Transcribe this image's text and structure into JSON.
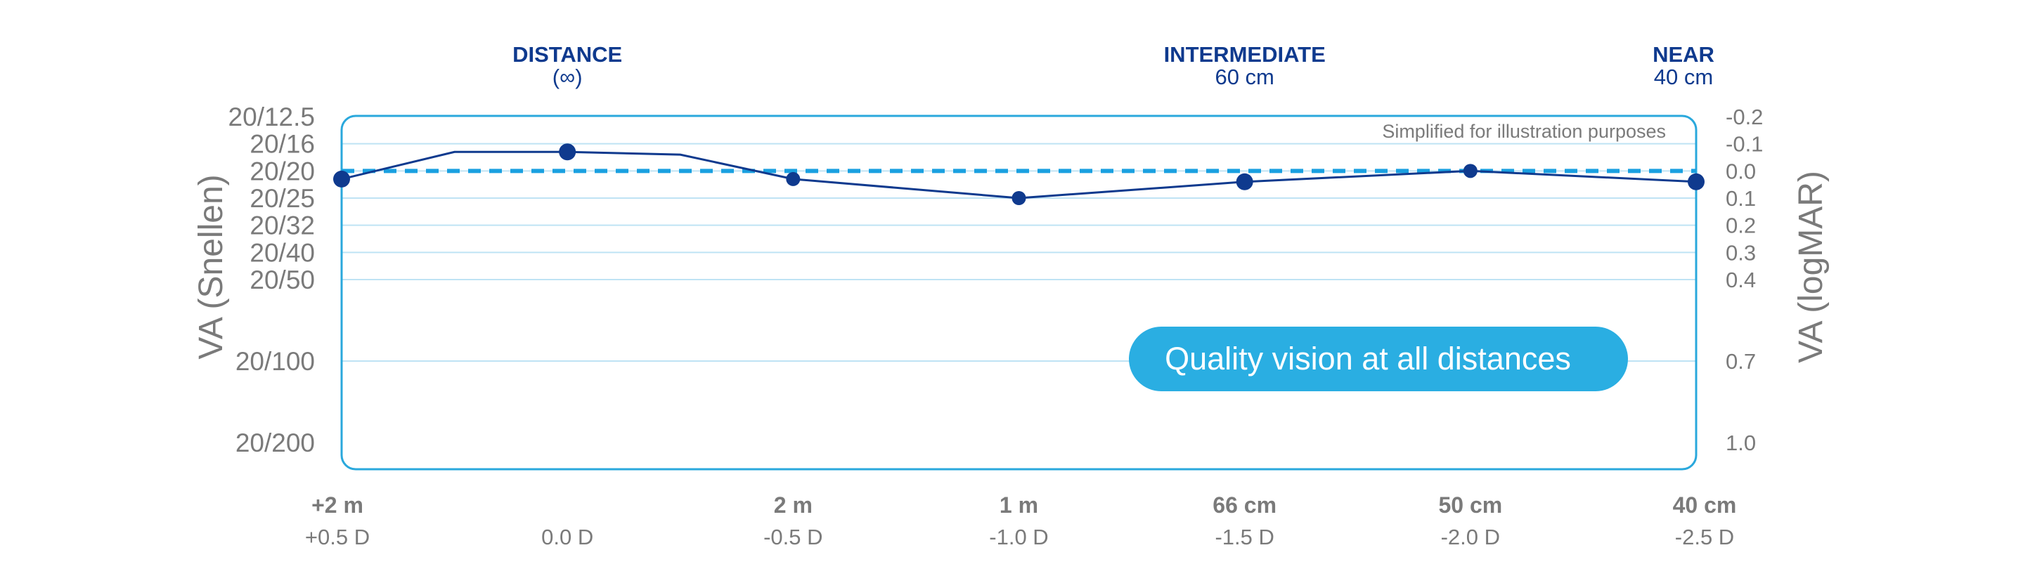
{
  "chart_data": {
    "type": "line",
    "y_left_label": "VA (Snellen)",
    "y_right_label": "VA (logMAR)",
    "y_left_ticks": [
      "20/12.5",
      "20/16",
      "20/20",
      "20/25",
      "20/32",
      "20/40",
      "20/50",
      "20/100",
      "20/200"
    ],
    "y_right_ticks": [
      "-0.2",
      "-0.1",
      "0.0",
      "0.1",
      "0.2",
      "0.3",
      "0.4",
      "0.7",
      "1.0"
    ],
    "y_tick_logmar": [
      -0.2,
      -0.1,
      0.0,
      0.1,
      0.2,
      0.3,
      0.4,
      0.7,
      1.0
    ],
    "ylim": [
      -0.2,
      1.0
    ],
    "xlim": [
      0.5,
      -2.5
    ],
    "x_ticks": [
      {
        "diopter": 0.5,
        "distance": "+2 m",
        "diopter_label": "+0.5 D"
      },
      {
        "diopter": 0.0,
        "distance": "",
        "diopter_label": "0.0 D"
      },
      {
        "diopter": -0.5,
        "distance": "2 m",
        "diopter_label": "-0.5 D"
      },
      {
        "diopter": -1.0,
        "distance": "1 m",
        "diopter_label": "-1.0 D"
      },
      {
        "diopter": -1.5,
        "distance": "66 cm",
        "diopter_label": "-1.5 D"
      },
      {
        "diopter": -2.0,
        "distance": "50 cm",
        "diopter_label": "-2.0 D"
      },
      {
        "diopter": -2.5,
        "distance": "40 cm",
        "diopter_label": "-2.5 D"
      }
    ],
    "zones": [
      {
        "name": "DISTANCE",
        "sub": "(∞)",
        "diopter": 0.0
      },
      {
        "name": "INTERMEDIATE",
        "sub": "60 cm",
        "diopter": -1.5
      },
      {
        "name": "NEAR",
        "sub": "40 cm",
        "diopter": -2.5
      }
    ],
    "series": [
      {
        "x": [
          0.5,
          0.25,
          0.0,
          -0.25,
          -0.5,
          -1.0,
          -1.5,
          -2.0,
          -2.5
        ],
        "y": [
          0.03,
          -0.07,
          -0.07,
          -0.06,
          0.03,
          0.1,
          0.04,
          0.0,
          0.04
        ],
        "markers": [
          0.5,
          0.0,
          -0.5,
          -1.0,
          -1.5,
          -2.0,
          -2.5
        ],
        "color": "#0f3a8e"
      }
    ],
    "reference_line": {
      "y": 0.0,
      "color": "#1aa0e0",
      "style": "dashed"
    },
    "grid": true,
    "frame_color": "#2aa8dc",
    "gridline_color": "#bfe3f4",
    "annotation": "Simplified for illustration purposes",
    "callout": "Quality vision at all distances",
    "callout_color": "#2aaee2"
  }
}
